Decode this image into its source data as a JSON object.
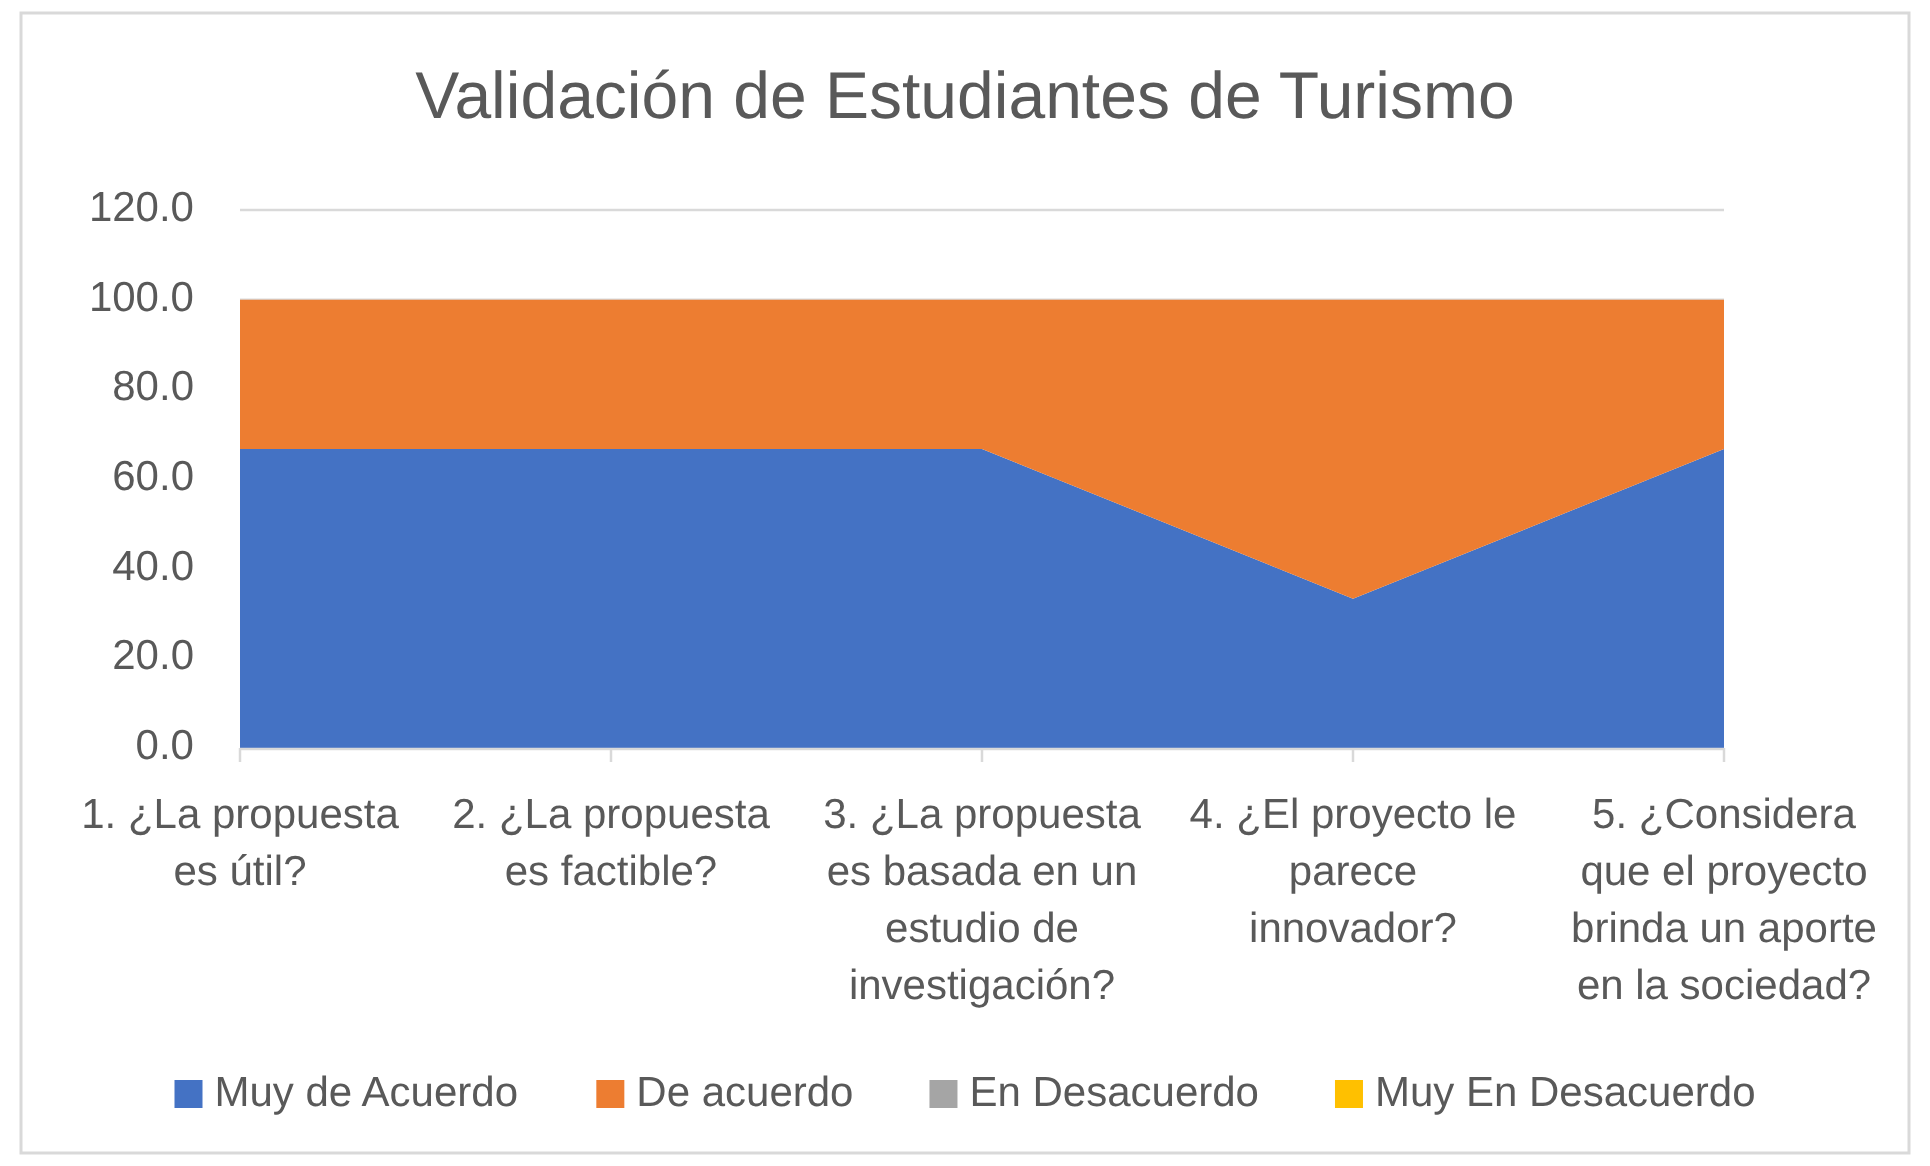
{
  "chart_data": {
    "type": "area",
    "title": "Validación de Estudiantes de Turismo",
    "categories": [
      "1. ¿La propuesta es útil?",
      "2. ¿La propuesta es factible?",
      "3. ¿La propuesta es basada en un estudio de investigación?",
      "4. ¿El proyecto le parece innovador?",
      "5. ¿Considera que el proyecto brinda un aporte en la sociedad?"
    ],
    "series": [
      {
        "name": "Muy de Acuerdo",
        "color": "#4472c4",
        "values": [
          66.7,
          66.7,
          66.7,
          33.3,
          66.7
        ]
      },
      {
        "name": "De acuerdo",
        "color": "#ed7d31",
        "values": [
          33.3,
          33.3,
          33.3,
          66.7,
          33.3
        ]
      },
      {
        "name": "En Desacuerdo",
        "color": "#a5a5a5",
        "values": [
          null,
          null,
          null,
          null,
          null
        ]
      },
      {
        "name": "Muy En Desacuerdo",
        "color": "#ffc000",
        "values": [
          null,
          null,
          null,
          null,
          null
        ]
      }
    ],
    "stacked": true,
    "ylim": [
      0,
      120
    ],
    "yticks": [
      {
        "value": 0,
        "label": "0.0"
      },
      {
        "value": 20,
        "label": "20.0"
      },
      {
        "value": 40,
        "label": "40.0"
      },
      {
        "value": 60,
        "label": "60.0"
      },
      {
        "value": 80,
        "label": "80.0"
      },
      {
        "value": 100,
        "label": "100.0"
      },
      {
        "value": 120,
        "label": "120.0"
      }
    ],
    "grid": "y",
    "legend": "bottom"
  }
}
